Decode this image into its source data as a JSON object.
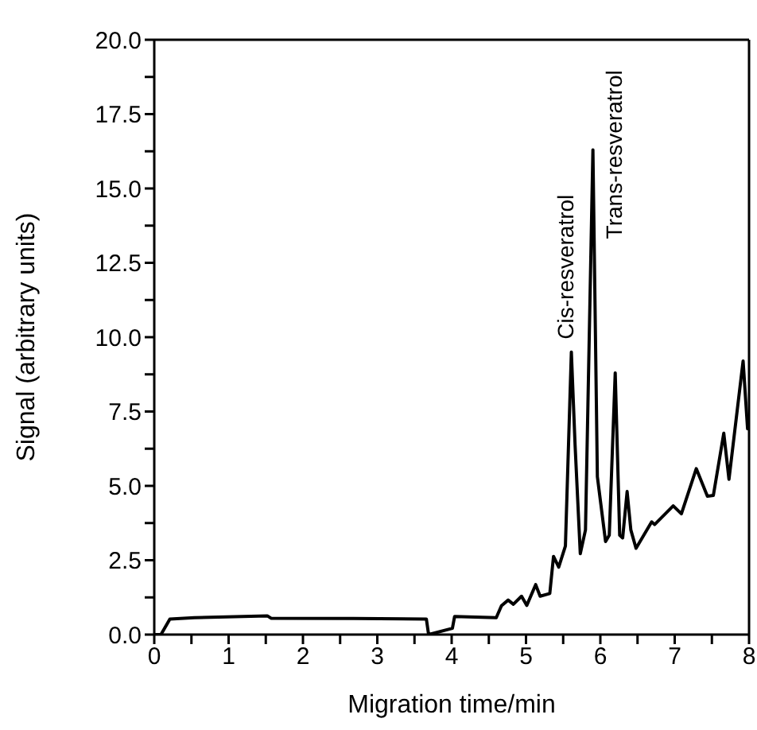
{
  "chart_data": {
    "type": "line",
    "xlabel": "Migration time/min",
    "ylabel": "Signal (arbitrary units)",
    "x": [
      0,
      0.09,
      0.21,
      0.54,
      1.52,
      1.57,
      2.68,
      3.66,
      3.69,
      4.01,
      4.04,
      4.6,
      4.67,
      4.76,
      4.83,
      4.94,
      5.01,
      5.13,
      5.19,
      5.32,
      5.37,
      5.44,
      5.53,
      5.61,
      5.66,
      5.73,
      5.8,
      5.9,
      5.96,
      6.07,
      6.12,
      6.2,
      6.26,
      6.3,
      6.36,
      6.41,
      6.48,
      6.69,
      6.73,
      6.98,
      7.09,
      7.29,
      7.44,
      7.52,
      7.66,
      7.73,
      7.92,
      7.98,
      8.0
    ],
    "series": [
      {
        "color": "#000000",
        "values": [
          0,
          0,
          0.52,
          0.57,
          0.63,
          0.55,
          0.54,
          0.52,
          0,
          0.21,
          0.61,
          0.57,
          0.97,
          1.16,
          1.02,
          1.29,
          0.98,
          1.68,
          1.29,
          1.38,
          2.63,
          2.27,
          2.98,
          9.5,
          6.38,
          2.72,
          3.52,
          16.3,
          5.31,
          3.13,
          3.34,
          8.8,
          3.34,
          3.25,
          4.81,
          3.52,
          2.9,
          3.79,
          3.7,
          4.33,
          4.06,
          5.58,
          4.65,
          4.68,
          6.77,
          5.22,
          9.2,
          6.92,
          7.36
        ]
      }
    ],
    "annotations": [
      {
        "text": "Cis-resveratrol",
        "x": 5.61,
        "y": 9.5
      },
      {
        "text": "Trans-resveratrol",
        "x": 5.9,
        "y": 16.3
      }
    ],
    "xlim": [
      0,
      8
    ],
    "ylim": [
      0,
      20
    ],
    "xticks": [
      0,
      {
        "value": 0.5,
        "label": null
      },
      1,
      {
        "value": 1.5,
        "label": null
      },
      2,
      {
        "value": 2.5,
        "label": null
      },
      3,
      {
        "value": 3.5,
        "label": null
      },
      4,
      {
        "value": 4.5,
        "label": null
      },
      5,
      {
        "value": 5.5,
        "label": null
      },
      6,
      {
        "value": 6.5,
        "label": null
      },
      7,
      {
        "value": 7.5,
        "label": null
      },
      8
    ],
    "yticks": [
      {
        "value": 0,
        "label": "0.0"
      },
      {
        "value": 1.25,
        "label": null
      },
      {
        "value": 2.5,
        "label": "2.5"
      },
      {
        "value": 3.75,
        "label": null
      },
      {
        "value": 5,
        "label": "5.0"
      },
      {
        "value": 6.25,
        "label": null
      },
      {
        "value": 7.5,
        "label": "7.5"
      },
      {
        "value": 8.75,
        "label": null
      },
      {
        "value": 10,
        "label": "10.0"
      },
      {
        "value": 11.25,
        "label": null
      },
      {
        "value": 12.5,
        "label": "12.5"
      },
      {
        "value": 13.75,
        "label": null
      },
      {
        "value": 15,
        "label": "15.0"
      },
      {
        "value": 16.25,
        "label": null
      },
      {
        "value": 17.5,
        "label": "17.5"
      },
      {
        "value": 18.75,
        "label": null
      },
      {
        "value": 20,
        "label": "20.0"
      }
    ],
    "grid": false,
    "legend": false,
    "marker": "none",
    "line_style": "solid"
  }
}
